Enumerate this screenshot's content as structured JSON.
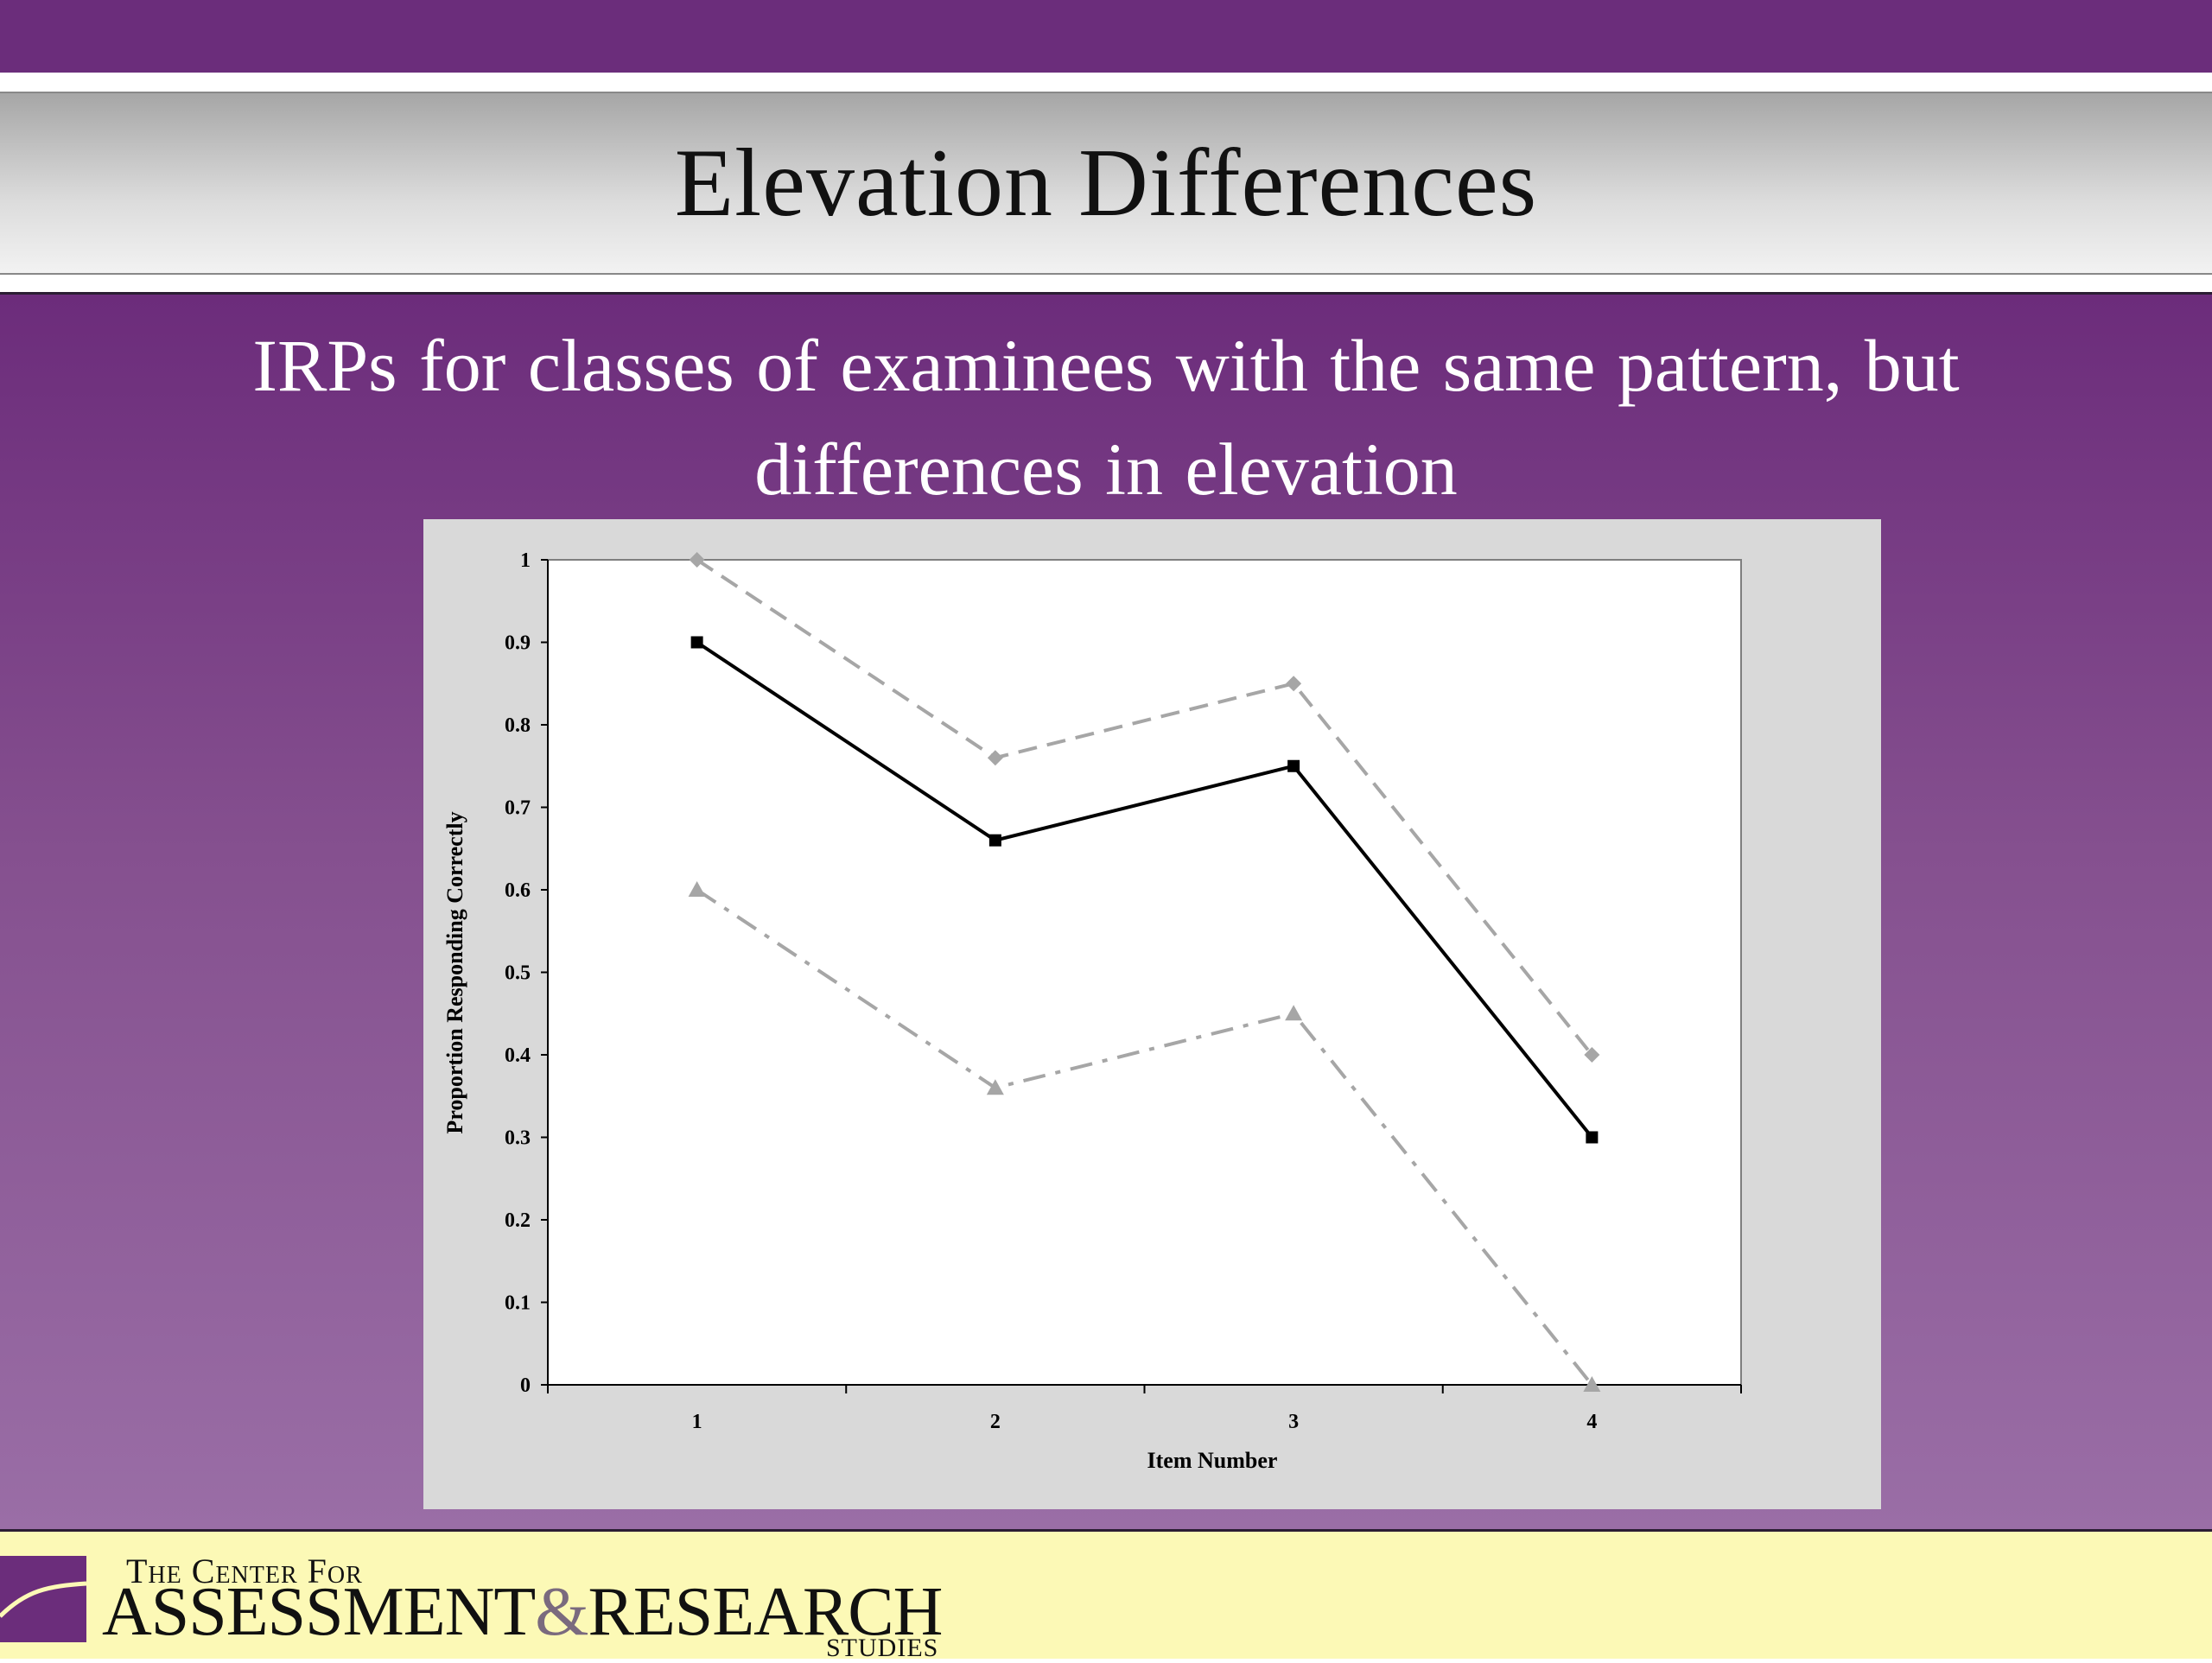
{
  "slide": {
    "title": "Elevation Differences",
    "subtitle_line1": "IRPs for classes of examinees with the same pattern, but",
    "subtitle_line2": "differences in elevation"
  },
  "footer": {
    "logo_line1": "The Center For",
    "logo_line2a": "ASSESSMENT",
    "logo_amp": "&",
    "logo_line2b": "RESEARCH",
    "logo_line3": "STUDIES"
  },
  "colors": {
    "accent_purple": "#6b2d7b",
    "footer_yellow": "#fcf9b6",
    "series_black": "#000000",
    "series_gray": "#a6a6a6"
  },
  "chart_data": {
    "type": "line",
    "title": "",
    "xlabel": "Item Number",
    "ylabel": "Proportion Responding Correctly",
    "categories": [
      "1",
      "2",
      "3",
      "4"
    ],
    "y_ticks": [
      "0",
      "0.1",
      "0.2",
      "0.3",
      "0.4",
      "0.5",
      "0.6",
      "0.7",
      "0.8",
      "0.9",
      "1"
    ],
    "ylim": [
      0,
      1
    ],
    "grid": false,
    "legend": "none",
    "series": [
      {
        "values": [
          1.0,
          0.76,
          0.85,
          0.4
        ],
        "color": "#a6a6a6",
        "dash": "dashed",
        "marker": "diamond"
      },
      {
        "values": [
          0.9,
          0.66,
          0.75,
          0.3
        ],
        "color": "#000000",
        "dash": "solid",
        "marker": "square"
      },
      {
        "values": [
          0.6,
          0.36,
          0.45,
          0.0
        ],
        "color": "#a6a6a6",
        "dash": "dash-dot",
        "marker": "triangle"
      }
    ]
  }
}
